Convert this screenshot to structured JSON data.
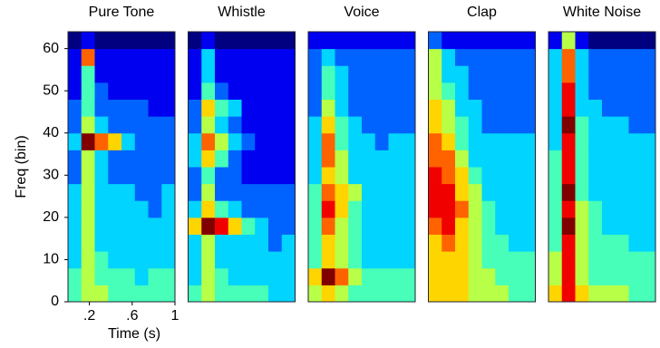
{
  "chart_data": [
    {
      "type": "heatmap",
      "title": "Pure Tone",
      "xlabel": "Time (s)",
      "ylabel": "Freq (bin)",
      "xlim": [
        0,
        1
      ],
      "ylim": [
        0,
        64
      ],
      "zlim": [
        0,
        9
      ],
      "colormap": "jet",
      "xticks": [
        {
          "value": 0.2,
          "label": ".2"
        },
        {
          "value": 0.6,
          "label": ".6"
        },
        1
      ],
      "yticks": [
        0,
        10,
        20,
        30,
        40,
        50,
        60
      ],
      "xbins": [
        0,
        0.125,
        0.25,
        0.375,
        0.5,
        0.625,
        0.75,
        0.875,
        1
      ],
      "ybins": [
        0,
        4,
        8,
        12,
        16,
        20,
        24,
        28,
        32,
        36,
        40,
        44,
        48,
        52,
        56,
        60,
        64
      ],
      "z": [
        [
          4,
          5,
          5,
          4,
          4,
          4,
          4,
          4
        ],
        [
          4,
          5,
          4,
          4,
          4,
          3,
          4,
          4
        ],
        [
          3,
          5,
          4,
          3,
          3,
          3,
          3,
          3
        ],
        [
          3,
          5,
          3,
          3,
          3,
          3,
          3,
          3
        ],
        [
          3,
          5,
          3,
          3,
          3,
          3,
          3,
          3
        ],
        [
          3,
          5,
          3,
          3,
          3,
          3,
          2,
          3
        ],
        [
          3,
          5,
          3,
          3,
          3,
          2,
          2,
          3
        ],
        [
          2,
          5,
          3,
          2,
          2,
          2,
          2,
          2
        ],
        [
          2,
          5,
          3,
          2,
          2,
          2,
          2,
          2
        ],
        [
          3,
          9,
          7,
          6,
          3,
          2,
          2,
          2
        ],
        [
          2,
          5,
          3,
          2,
          2,
          2,
          2,
          2
        ],
        [
          2,
          4,
          2,
          2,
          2,
          2,
          1,
          1
        ],
        [
          1,
          4,
          2,
          1,
          1,
          1,
          1,
          1
        ],
        [
          1,
          4,
          1,
          1,
          1,
          1,
          1,
          1
        ],
        [
          1,
          7,
          1,
          1,
          1,
          1,
          1,
          1
        ],
        [
          0,
          1,
          0,
          0,
          0,
          0,
          0,
          0
        ]
      ]
    },
    {
      "type": "heatmap",
      "title": "Whistle",
      "xlim": [
        0,
        1
      ],
      "ylim": [
        0,
        64
      ],
      "zlim": [
        0,
        9
      ],
      "colormap": "jet",
      "xbins": [
        0,
        0.125,
        0.25,
        0.375,
        0.5,
        0.625,
        0.75,
        0.875,
        1
      ],
      "ybins": [
        0,
        4,
        8,
        12,
        16,
        20,
        24,
        28,
        32,
        36,
        40,
        44,
        48,
        52,
        56,
        60,
        64
      ],
      "z": [
        [
          4,
          5,
          4,
          4,
          4,
          4,
          3,
          3
        ],
        [
          3,
          5,
          4,
          3,
          3,
          3,
          3,
          3
        ],
        [
          3,
          5,
          3,
          3,
          3,
          3,
          3,
          3
        ],
        [
          3,
          5,
          3,
          3,
          3,
          3,
          2,
          3
        ],
        [
          6,
          9,
          8,
          6,
          4,
          3,
          2,
          2
        ],
        [
          3,
          6,
          4,
          3,
          2,
          2,
          2,
          2
        ],
        [
          2,
          5,
          2,
          2,
          2,
          2,
          2,
          2
        ],
        [
          2,
          4,
          2,
          2,
          1,
          1,
          1,
          1
        ],
        [
          3,
          6,
          4,
          2,
          1,
          1,
          1,
          1
        ],
        [
          3,
          7,
          5,
          3,
          2,
          1,
          1,
          1
        ],
        [
          2,
          5,
          3,
          2,
          1,
          1,
          1,
          1
        ],
        [
          2,
          6,
          4,
          3,
          1,
          1,
          1,
          1
        ],
        [
          1,
          4,
          2,
          1,
          1,
          1,
          1,
          1
        ],
        [
          1,
          3,
          1,
          1,
          1,
          1,
          1,
          1
        ],
        [
          1,
          3,
          1,
          1,
          1,
          1,
          1,
          1
        ],
        [
          0,
          1,
          0,
          0,
          0,
          0,
          0,
          0
        ]
      ]
    },
    {
      "type": "heatmap",
      "title": "Voice",
      "xlim": [
        0,
        1
      ],
      "ylim": [
        0,
        64
      ],
      "zlim": [
        0,
        9
      ],
      "colormap": "jet",
      "xbins": [
        0,
        0.125,
        0.25,
        0.375,
        0.5,
        0.625,
        0.75,
        0.875,
        1
      ],
      "ybins": [
        0,
        4,
        8,
        12,
        16,
        20,
        24,
        28,
        32,
        36,
        40,
        44,
        48,
        52,
        56,
        60,
        64
      ],
      "z": [
        [
          5,
          6,
          5,
          4,
          4,
          4,
          4,
          4
        ],
        [
          6,
          9,
          7,
          5,
          4,
          4,
          4,
          4
        ],
        [
          4,
          6,
          5,
          4,
          3,
          3,
          3,
          3
        ],
        [
          4,
          6,
          5,
          4,
          3,
          3,
          3,
          3
        ],
        [
          4,
          7,
          5,
          4,
          3,
          3,
          3,
          3
        ],
        [
          4,
          8,
          6,
          4,
          3,
          3,
          3,
          3
        ],
        [
          4,
          7,
          6,
          5,
          3,
          3,
          3,
          3
        ],
        [
          3,
          6,
          5,
          3,
          3,
          3,
          3,
          3
        ],
        [
          3,
          7,
          5,
          3,
          3,
          3,
          3,
          3
        ],
        [
          3,
          7,
          4,
          3,
          3,
          2,
          3,
          3
        ],
        [
          3,
          6,
          4,
          3,
          2,
          2,
          2,
          2
        ],
        [
          2,
          5,
          3,
          2,
          2,
          2,
          2,
          2
        ],
        [
          2,
          4,
          3,
          2,
          2,
          2,
          2,
          2
        ],
        [
          2,
          4,
          3,
          2,
          2,
          2,
          2,
          2
        ],
        [
          2,
          3,
          2,
          2,
          2,
          2,
          2,
          2
        ],
        [
          1,
          1,
          1,
          1,
          1,
          1,
          1,
          1
        ]
      ]
    },
    {
      "type": "heatmap",
      "title": "Clap",
      "xlim": [
        0,
        1
      ],
      "ylim": [
        0,
        64
      ],
      "zlim": [
        0,
        9
      ],
      "colormap": "jet",
      "xbins": [
        0,
        0.125,
        0.25,
        0.375,
        0.5,
        0.625,
        0.75,
        0.875,
        1
      ],
      "ybins": [
        0,
        4,
        8,
        12,
        16,
        20,
        24,
        28,
        32,
        36,
        40,
        44,
        48,
        52,
        56,
        60,
        64
      ],
      "z": [
        [
          6,
          6,
          6,
          5,
          5,
          5,
          4,
          4
        ],
        [
          6,
          6,
          6,
          5,
          5,
          4,
          4,
          4
        ],
        [
          6,
          6,
          6,
          5,
          4,
          4,
          4,
          4
        ],
        [
          6,
          7,
          6,
          5,
          4,
          4,
          3,
          3
        ],
        [
          7,
          8,
          6,
          5,
          4,
          3,
          3,
          3
        ],
        [
          8,
          8,
          7,
          5,
          4,
          3,
          3,
          3
        ],
        [
          8,
          8,
          6,
          5,
          3,
          3,
          3,
          3
        ],
        [
          8,
          7,
          6,
          4,
          3,
          3,
          3,
          3
        ],
        [
          7,
          7,
          5,
          3,
          3,
          3,
          3,
          3
        ],
        [
          7,
          6,
          4,
          3,
          3,
          3,
          3,
          3
        ],
        [
          6,
          5,
          4,
          3,
          2,
          2,
          2,
          2
        ],
        [
          6,
          5,
          3,
          3,
          2,
          2,
          2,
          2
        ],
        [
          5,
          4,
          3,
          2,
          2,
          2,
          2,
          2
        ],
        [
          5,
          3,
          3,
          2,
          2,
          2,
          2,
          2
        ],
        [
          5,
          3,
          2,
          2,
          2,
          2,
          2,
          2
        ],
        [
          2,
          1,
          1,
          1,
          1,
          1,
          1,
          1
        ]
      ]
    },
    {
      "type": "heatmap",
      "title": "White Noise",
      "xlim": [
        0,
        1
      ],
      "ylim": [
        0,
        64
      ],
      "zlim": [
        0,
        9
      ],
      "colormap": "jet",
      "xbins": [
        0,
        0.125,
        0.25,
        0.375,
        0.5,
        0.625,
        0.75,
        0.875,
        1
      ],
      "ybins": [
        0,
        4,
        8,
        12,
        16,
        20,
        24,
        28,
        32,
        36,
        40,
        44,
        48,
        52,
        56,
        60,
        64
      ],
      "z": [
        [
          6,
          8,
          6,
          5,
          5,
          5,
          4,
          4
        ],
        [
          5,
          8,
          5,
          4,
          4,
          4,
          4,
          4
        ],
        [
          5,
          8,
          5,
          4,
          4,
          4,
          4,
          4
        ],
        [
          4,
          8,
          5,
          4,
          4,
          4,
          3,
          3
        ],
        [
          4,
          9,
          5,
          4,
          3,
          3,
          3,
          3
        ],
        [
          4,
          8,
          5,
          4,
          3,
          3,
          3,
          3
        ],
        [
          4,
          9,
          4,
          3,
          3,
          3,
          3,
          3
        ],
        [
          4,
          8,
          4,
          3,
          3,
          3,
          3,
          3
        ],
        [
          4,
          8,
          4,
          3,
          3,
          3,
          3,
          3
        ],
        [
          3,
          8,
          4,
          3,
          3,
          3,
          3,
          3
        ],
        [
          3,
          9,
          4,
          3,
          3,
          3,
          2,
          2
        ],
        [
          3,
          8,
          3,
          3,
          2,
          2,
          2,
          2
        ],
        [
          3,
          8,
          3,
          2,
          2,
          2,
          2,
          2
        ],
        [
          3,
          7,
          3,
          2,
          2,
          2,
          2,
          2
        ],
        [
          3,
          7,
          3,
          2,
          2,
          2,
          2,
          2
        ],
        [
          1,
          5,
          1,
          0,
          0,
          0,
          0,
          0
        ]
      ]
    }
  ]
}
